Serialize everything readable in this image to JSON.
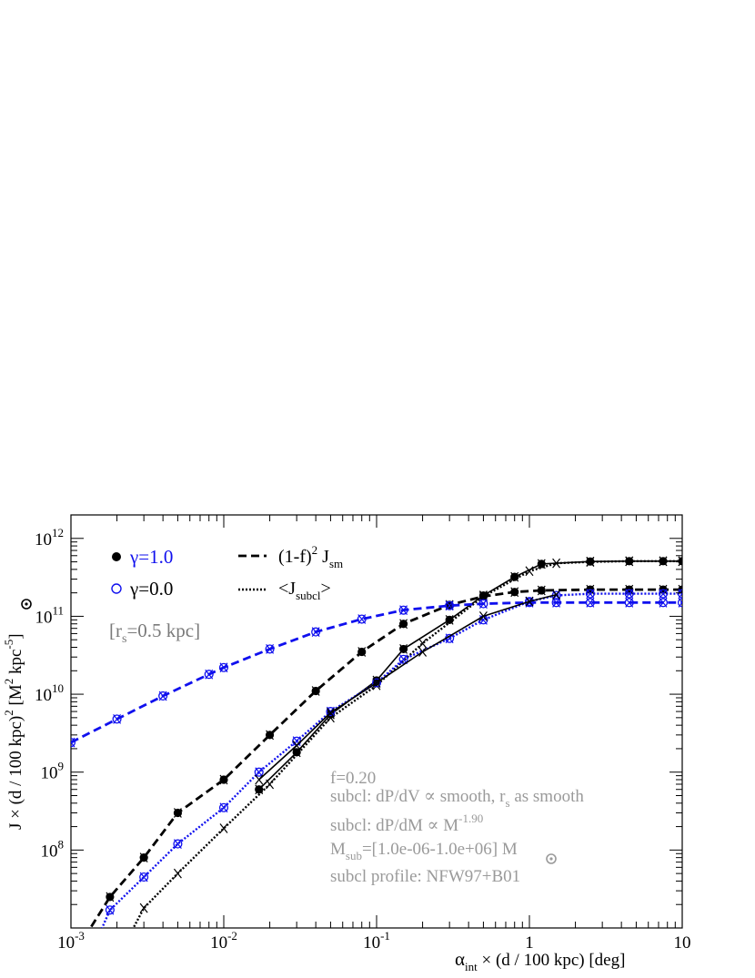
{
  "chart_data": {
    "type": "line",
    "xscale": "log",
    "yscale": "log",
    "xlim": [
      0.001,
      10
    ],
    "ylim": [
      10000000.0,
      2000000000000.0
    ],
    "x_ticks": [
      {
        "value": 0.001,
        "base": "10",
        "exp": "-3"
      },
      {
        "value": 0.01,
        "base": "10",
        "exp": "-2"
      },
      {
        "value": 0.1,
        "base": "10",
        "exp": "-1"
      },
      {
        "value": 1,
        "base": "1",
        "exp": ""
      },
      {
        "value": 10,
        "base": "10",
        "exp": ""
      }
    ],
    "y_ticks": [
      {
        "value": 100000000.0,
        "base": "10",
        "exp": "8"
      },
      {
        "value": 1000000000.0,
        "base": "10",
        "exp": "9"
      },
      {
        "value": 10000000000.0,
        "base": "10",
        "exp": "10"
      },
      {
        "value": 100000000000.0,
        "base": "10",
        "exp": "11"
      },
      {
        "value": 1000000000000.0,
        "base": "10",
        "exp": "12"
      }
    ],
    "xlabel": {
      "alpha": "α",
      "sub": "int",
      "rest": " × (d / 100 kpc)   [deg]"
    },
    "ylabel": {
      "a": "J × (d / 100 kpc)",
      "b": "2",
      "c": "  [M",
      "d": "2",
      "e": " kpc",
      "f": "-5",
      "g": "]"
    },
    "legend_gamma": [
      {
        "label": "γ=1.0",
        "marker": "filled-circle",
        "color": "#1010ee"
      },
      {
        "label": "γ=0.0",
        "marker": "open-circle",
        "color": "#1010ee"
      }
    ],
    "legend_lines": [
      {
        "pre": "(1-f)",
        "sup": "2",
        "mid": " J",
        "sub": "sm",
        "post": "",
        "style": "dashed"
      },
      {
        "pre": "<J",
        "sup": "",
        "mid": "",
        "sub": "subcl",
        "post": ">",
        "style": "dotted"
      }
    ],
    "rs_label": {
      "pre": "[r",
      "sub": "s",
      "post": "=0.5 kpc]"
    },
    "annotations": {
      "f": "f=0.20",
      "subcl_dpdv": {
        "pre": "subcl: dP/dV ∝ smooth, r",
        "sub": "s",
        "post": " as smooth"
      },
      "subcl_dpdm": {
        "pre": "subcl: dP/dM ∝ M",
        "sup": "-1.90"
      },
      "msub": {
        "pre": "M",
        "sub": "sub",
        "post": "=[1.0e-06-1.0e+06] M"
      },
      "profile": "subcl profile: NFW97+B01"
    },
    "series": [
      {
        "name": "γ=1.0 (1-f)² J_sm",
        "color": "#000000",
        "style": "dashed",
        "marker": "filled-circle",
        "x": [
          0.001,
          0.0018,
          0.003,
          0.005,
          0.01,
          0.02,
          0.04,
          0.08,
          0.15,
          0.3,
          0.5,
          0.8,
          1.2,
          2.5,
          4.5,
          7.5,
          10
        ],
        "y": [
          4000000.0,
          25000000.0,
          80000000.0,
          300000000.0,
          800000000.0,
          3000000000.0,
          11000000000.0,
          35000000000.0,
          80000000000.0,
          140000000000.0,
          180000000000.0,
          205000000000.0,
          215000000000.0,
          220000000000.0,
          220000000000.0,
          220000000000.0,
          220000000000.0
        ]
      },
      {
        "name": "γ=1.0 <J_subcl>",
        "color": "#000000",
        "style": "dotted",
        "marker": "none",
        "x": [
          0.002,
          0.003,
          0.005,
          0.01,
          0.02,
          0.05,
          0.1,
          0.2,
          0.5,
          1,
          1.5,
          2.5,
          4.5,
          7.5,
          10
        ],
        "y": [
          4000000.0,
          18000000.0,
          50000000.0,
          190000000.0,
          700000000.0,
          5000000000.0,
          13000000000.0,
          45000000000.0,
          180000000000.0,
          380000000000.0,
          480000000000.0,
          500000000000.0,
          510000000000.0,
          510000000000.0,
          510000000000.0
        ]
      },
      {
        "name": "γ=1.0 total",
        "color": "#000000",
        "style": "solid",
        "marker": "filled-circle",
        "x": [
          0.017,
          0.03,
          0.05,
          0.1,
          0.15,
          0.3,
          0.5,
          0.8,
          1.2,
          2.5,
          4.5,
          7.5,
          10
        ],
        "y": [
          600000000.0,
          1800000000.0,
          5500000000.0,
          15000000000.0,
          38000000000.0,
          90000000000.0,
          185000000000.0,
          320000000000.0,
          470000000000.0,
          505000000000.0,
          510000000000.0,
          510000000000.0,
          510000000000.0
        ]
      },
      {
        "name": "γ=0.0 (1-f)² J_sm",
        "color": "#1010ee",
        "style": "dashed",
        "marker": "open-circle",
        "x": [
          0.001,
          0.002,
          0.004,
          0.008,
          0.01,
          0.02,
          0.04,
          0.08,
          0.15,
          0.3,
          0.5,
          1,
          1.5,
          2.5,
          4.5,
          7.5,
          10
        ],
        "y": [
          2400000000.0,
          4800000000.0,
          9500000000.0,
          18000000000.0,
          22000000000.0,
          38000000000.0,
          63000000000.0,
          92000000000.0,
          120000000000.0,
          137000000000.0,
          145000000000.0,
          150000000000.0,
          150000000000.0,
          150000000000.0,
          150000000000.0,
          150000000000.0,
          150000000000.0
        ]
      },
      {
        "name": "γ=0.0 <J_subcl>",
        "color": "#1010ee",
        "style": "dotted",
        "marker": "open-circle",
        "x": [
          0.0013,
          0.0018,
          0.003,
          0.005,
          0.01,
          0.017,
          0.03,
          0.05,
          0.1,
          0.15,
          0.3,
          0.5,
          1,
          1.5,
          2.5,
          4.5,
          7.5,
          10
        ],
        "y": [
          4000000.0,
          17000000.0,
          45000000.0,
          120000000.0,
          350000000.0,
          1000000000.0,
          2500000000.0,
          6000000000.0,
          14000000000.0,
          28000000000.0,
          52000000000.0,
          90000000000.0,
          155000000000.0,
          185000000000.0,
          195000000000.0,
          195000000000.0,
          195000000000.0,
          195000000000.0
        ]
      },
      {
        "name": "γ=0.0 total",
        "color": "#000000",
        "style": "solid",
        "marker": "none",
        "x": [
          0.017,
          0.03,
          0.05,
          0.1,
          0.2,
          0.5,
          1,
          1.5
        ],
        "y": [
          800000000.0,
          2200000000.0,
          5800000000.0,
          14000000000.0,
          35000000000.0,
          100000000000.0,
          155000000000.0,
          190000000000.0
        ]
      }
    ],
    "grid": false,
    "legend_position": "top-left"
  }
}
